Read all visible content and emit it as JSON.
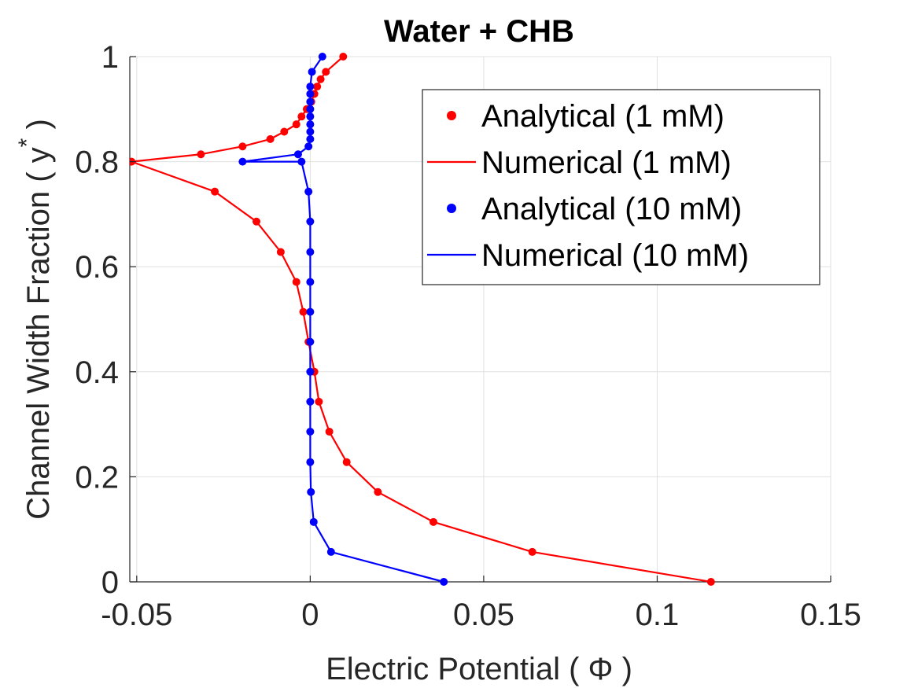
{
  "chart_data": {
    "type": "line",
    "title": "Water + CHB",
    "xlabel": "Electric Potential  ( Φ )",
    "ylabel_main": "Channel Width Fraction ( y",
    "ylabel_sup": "*",
    "ylabel_close": " )",
    "xlim": [
      -0.052,
      0.15
    ],
    "ylim": [
      0,
      1
    ],
    "xticks": [
      -0.05,
      0,
      0.05,
      0.1,
      0.15
    ],
    "xtick_labels": [
      "-0.05",
      "0",
      "0.05",
      "0.1",
      "0.15"
    ],
    "yticks": [
      0,
      0.2,
      0.4,
      0.6,
      0.8,
      1
    ],
    "ytick_labels": [
      "0",
      "0.2",
      "0.4",
      "0.6",
      "0.8",
      "1"
    ],
    "grid": true,
    "legend_position": "top-right",
    "series": [
      {
        "name": "Analytical (1 mM)",
        "style": "markers",
        "color": "#ff0000",
        "x": [
          0.1155,
          0.064,
          0.0355,
          0.0195,
          0.0105,
          0.0055,
          0.0025,
          0.0012,
          -0.0005,
          -0.002,
          -0.004,
          -0.0085,
          -0.0155,
          -0.0275,
          -0.0515,
          -0.0315,
          -0.0195,
          -0.0115,
          -0.0075,
          -0.004,
          -0.0025,
          -0.001,
          0.0003,
          0.0012,
          0.002,
          0.003,
          0.0045,
          0.0095
        ],
        "y": [
          0.0,
          0.057,
          0.114,
          0.171,
          0.228,
          0.286,
          0.343,
          0.4,
          0.457,
          0.514,
          0.571,
          0.628,
          0.686,
          0.743,
          0.8,
          0.814,
          0.829,
          0.843,
          0.857,
          0.871,
          0.886,
          0.9,
          0.914,
          0.929,
          0.943,
          0.957,
          0.971,
          1.0
        ]
      },
      {
        "name": "Numerical (1 mM)",
        "style": "line",
        "color": "#ff0000",
        "x": [
          0.1155,
          0.064,
          0.0355,
          0.0195,
          0.0105,
          0.0055,
          0.0025,
          0.0012,
          -0.0005,
          -0.002,
          -0.004,
          -0.0085,
          -0.0155,
          -0.0275,
          -0.0515,
          -0.0315,
          -0.0195,
          -0.0115,
          -0.0075,
          -0.004,
          -0.0025,
          -0.001,
          0.0003,
          0.0012,
          0.002,
          0.003,
          0.0045,
          0.0095
        ],
        "y": [
          0.0,
          0.057,
          0.114,
          0.171,
          0.228,
          0.286,
          0.343,
          0.4,
          0.457,
          0.514,
          0.571,
          0.628,
          0.686,
          0.743,
          0.8,
          0.814,
          0.829,
          0.843,
          0.857,
          0.871,
          0.886,
          0.9,
          0.914,
          0.929,
          0.943,
          0.957,
          0.971,
          1.0
        ]
      },
      {
        "name": "Analytical (10 mM)",
        "style": "markers",
        "color": "#0000ff",
        "x": [
          0.0385,
          0.006,
          0.001,
          0.0002,
          0.0,
          0.0,
          0.0,
          0.0,
          0.0,
          0.0,
          0.0,
          0.0,
          0.0,
          -0.0005,
          -0.0025,
          -0.0195,
          -0.0035,
          -0.0005,
          0.0,
          0.0,
          0.0,
          0.0,
          0.0,
          0.0,
          0.0,
          0.0,
          0.0005,
          0.0035
        ],
        "y": [
          0.0,
          0.057,
          0.114,
          0.171,
          0.228,
          0.286,
          0.343,
          0.4,
          0.457,
          0.514,
          0.571,
          0.628,
          0.686,
          0.743,
          0.8,
          0.8,
          0.814,
          0.829,
          0.843,
          0.857,
          0.871,
          0.886,
          0.9,
          0.914,
          0.929,
          0.943,
          0.971,
          1.0
        ]
      },
      {
        "name": "Numerical (10 mM)",
        "style": "line",
        "color": "#0000ff",
        "x": [
          0.0385,
          0.006,
          0.001,
          0.0002,
          0.0,
          0.0,
          0.0,
          0.0,
          0.0,
          0.0,
          0.0,
          0.0,
          0.0,
          -0.0005,
          -0.0025,
          -0.0195,
          -0.0035,
          -0.0005,
          0.0,
          0.0,
          0.0,
          0.0,
          0.0,
          0.0,
          0.0,
          0.0,
          0.0005,
          0.0035
        ],
        "y": [
          0.0,
          0.057,
          0.114,
          0.171,
          0.228,
          0.286,
          0.343,
          0.4,
          0.457,
          0.514,
          0.571,
          0.628,
          0.686,
          0.743,
          0.8,
          0.8,
          0.814,
          0.829,
          0.843,
          0.857,
          0.871,
          0.886,
          0.9,
          0.914,
          0.929,
          0.943,
          0.971,
          1.0
        ]
      }
    ]
  }
}
